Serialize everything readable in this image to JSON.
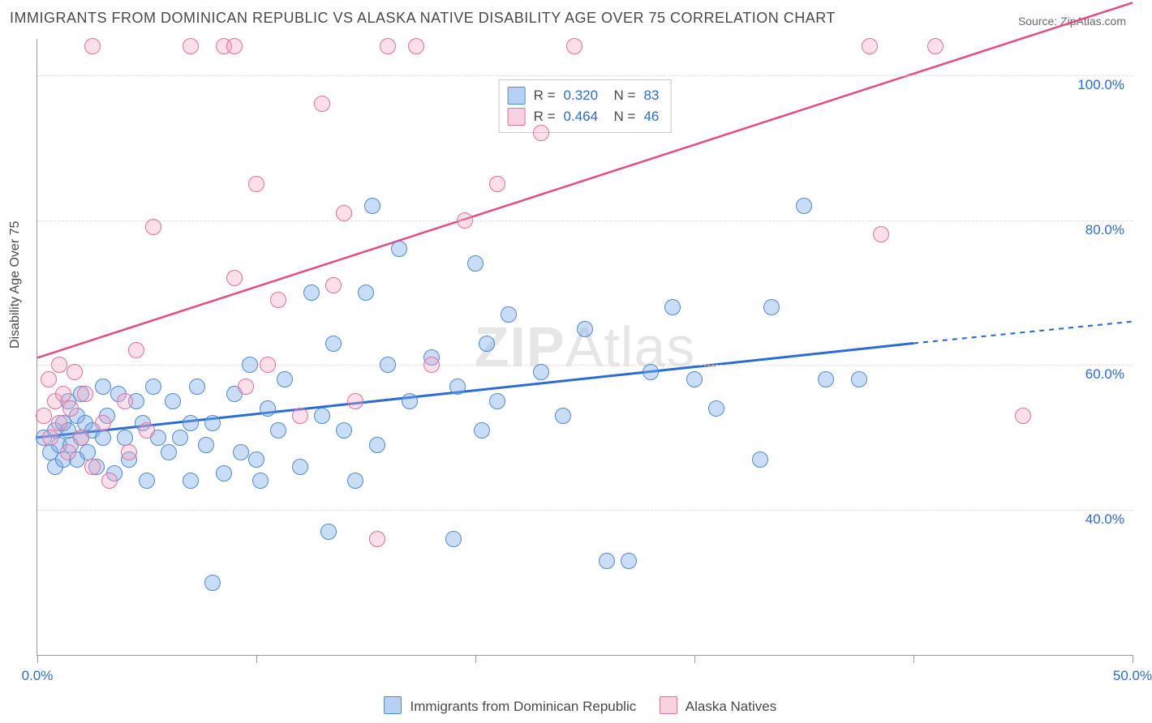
{
  "title": "IMMIGRANTS FROM DOMINICAN REPUBLIC VS ALASKA NATIVE DISABILITY AGE OVER 75 CORRELATION CHART",
  "source": "Source: ZipAtlas.com",
  "y_axis_label": "Disability Age Over 75",
  "watermark_a": "ZIP",
  "watermark_b": "Atlas",
  "chart": {
    "type": "scatter",
    "xlim": [
      0,
      50
    ],
    "ylim": [
      20,
      105
    ],
    "x_ticks": [
      0,
      10,
      20,
      30,
      40,
      50
    ],
    "x_tick_labels": [
      "0.0%",
      "",
      "",
      "",
      "",
      "50.0%"
    ],
    "y_ticks": [
      40,
      60,
      80,
      100
    ],
    "y_tick_labels": [
      "40.0%",
      "60.0%",
      "80.0%",
      "100.0%"
    ],
    "grid_color": "#e0e0e0",
    "axis_color": "#9a9a9a",
    "background_color": "#ffffff",
    "label_color": "#2b6cd4",
    "title_fontsize": 18,
    "tick_fontsize": 17,
    "marker_radius": 9
  },
  "series": [
    {
      "key": "dominican",
      "label": "Immigrants from Dominican Republic",
      "color_fill": "rgba(123,171,232,0.40)",
      "color_stroke": "#4f8bd6",
      "trend_color": "#2b6cd4",
      "trend_width": 3,
      "R": "0.320",
      "N": "83",
      "trend": {
        "x1": 0,
        "y1": 50,
        "x2_solid": 40,
        "y2_solid": 63,
        "x2": 50,
        "y2": 66
      },
      "points": [
        [
          0.3,
          50
        ],
        [
          0.6,
          48
        ],
        [
          0.8,
          51
        ],
        [
          0.8,
          46
        ],
        [
          1.0,
          49
        ],
        [
          1.2,
          52
        ],
        [
          1.2,
          47
        ],
        [
          1.4,
          55
        ],
        [
          1.4,
          51
        ],
        [
          1.5,
          49
        ],
        [
          1.8,
          53
        ],
        [
          1.8,
          47
        ],
        [
          2.0,
          56
        ],
        [
          2.0,
          50
        ],
        [
          2.2,
          52
        ],
        [
          2.3,
          48
        ],
        [
          2.5,
          51
        ],
        [
          2.7,
          46
        ],
        [
          3.0,
          57
        ],
        [
          3.0,
          50
        ],
        [
          3.2,
          53
        ],
        [
          3.5,
          45
        ],
        [
          3.7,
          56
        ],
        [
          4.0,
          50
        ],
        [
          4.2,
          47
        ],
        [
          4.5,
          55
        ],
        [
          4.8,
          52
        ],
        [
          5.0,
          44
        ],
        [
          5.3,
          57
        ],
        [
          5.5,
          50
        ],
        [
          6.0,
          48
        ],
        [
          6.2,
          55
        ],
        [
          6.5,
          50
        ],
        [
          7.0,
          44
        ],
        [
          7.0,
          52
        ],
        [
          7.3,
          57
        ],
        [
          7.7,
          49
        ],
        [
          8.0,
          30
        ],
        [
          8.0,
          52
        ],
        [
          8.5,
          45
        ],
        [
          9.0,
          56
        ],
        [
          9.3,
          48
        ],
        [
          9.7,
          60
        ],
        [
          10.0,
          47
        ],
        [
          10.2,
          44
        ],
        [
          10.5,
          54
        ],
        [
          11.0,
          51
        ],
        [
          11.3,
          58
        ],
        [
          12.0,
          46
        ],
        [
          12.5,
          70
        ],
        [
          13.0,
          53
        ],
        [
          13.3,
          37
        ],
        [
          13.5,
          63
        ],
        [
          14.0,
          51
        ],
        [
          14.5,
          44
        ],
        [
          15.0,
          70
        ],
        [
          15.3,
          82
        ],
        [
          15.5,
          49
        ],
        [
          16.0,
          60
        ],
        [
          16.5,
          76
        ],
        [
          17.0,
          55
        ],
        [
          18.0,
          61
        ],
        [
          19.0,
          36
        ],
        [
          19.2,
          57
        ],
        [
          20.0,
          74
        ],
        [
          20.3,
          51
        ],
        [
          20.5,
          63
        ],
        [
          21.0,
          55
        ],
        [
          21.5,
          67
        ],
        [
          23.0,
          59
        ],
        [
          24.0,
          53
        ],
        [
          25.0,
          65
        ],
        [
          26.0,
          33
        ],
        [
          27.0,
          33
        ],
        [
          28.0,
          59
        ],
        [
          29.0,
          68
        ],
        [
          30.0,
          58
        ],
        [
          31.0,
          54
        ],
        [
          33.0,
          47
        ],
        [
          33.5,
          68
        ],
        [
          35.0,
          82
        ],
        [
          36.0,
          58
        ],
        [
          37.5,
          58
        ]
      ]
    },
    {
      "key": "alaska",
      "label": "Alaska Natives",
      "color_fill": "rgba(245,163,190,0.35)",
      "color_stroke": "#e76f9b",
      "trend_color": "#e64b86",
      "trend_width": 2.5,
      "R": "0.464",
      "N": "46",
      "trend": {
        "x1": 0,
        "y1": 61,
        "x2_solid": 50,
        "y2_solid": 110,
        "x2": 50,
        "y2": 110
      },
      "points": [
        [
          0.3,
          53
        ],
        [
          0.5,
          58
        ],
        [
          0.6,
          50
        ],
        [
          0.8,
          55
        ],
        [
          1.0,
          60
        ],
        [
          1.0,
          52
        ],
        [
          1.2,
          56
        ],
        [
          1.4,
          48
        ],
        [
          1.5,
          54
        ],
        [
          1.7,
          59
        ],
        [
          2.0,
          50
        ],
        [
          2.2,
          56
        ],
        [
          2.5,
          46
        ],
        [
          2.5,
          104
        ],
        [
          3.0,
          52
        ],
        [
          3.3,
          44
        ],
        [
          4.0,
          55
        ],
        [
          4.2,
          48
        ],
        [
          4.5,
          62
        ],
        [
          5.0,
          51
        ],
        [
          5.3,
          79
        ],
        [
          7.0,
          104
        ],
        [
          8.5,
          104
        ],
        [
          9.0,
          72
        ],
        [
          9.0,
          104
        ],
        [
          9.5,
          57
        ],
        [
          10.0,
          85
        ],
        [
          10.5,
          60
        ],
        [
          11.0,
          69
        ],
        [
          12.0,
          53
        ],
        [
          13.0,
          96
        ],
        [
          13.5,
          71
        ],
        [
          14.0,
          81
        ],
        [
          14.5,
          55
        ],
        [
          15.5,
          36
        ],
        [
          16.0,
          104
        ],
        [
          17.3,
          104
        ],
        [
          18.0,
          60
        ],
        [
          19.5,
          80
        ],
        [
          21.0,
          85
        ],
        [
          23.0,
          92
        ],
        [
          24.5,
          104
        ],
        [
          38.0,
          104
        ],
        [
          38.5,
          78
        ],
        [
          41.0,
          104
        ],
        [
          45.0,
          53
        ]
      ]
    }
  ],
  "bottom_legend": {
    "items": [
      {
        "swatch": "blue",
        "label": "Immigrants from Dominican Republic"
      },
      {
        "swatch": "pink",
        "label": "Alaska Natives"
      }
    ]
  }
}
